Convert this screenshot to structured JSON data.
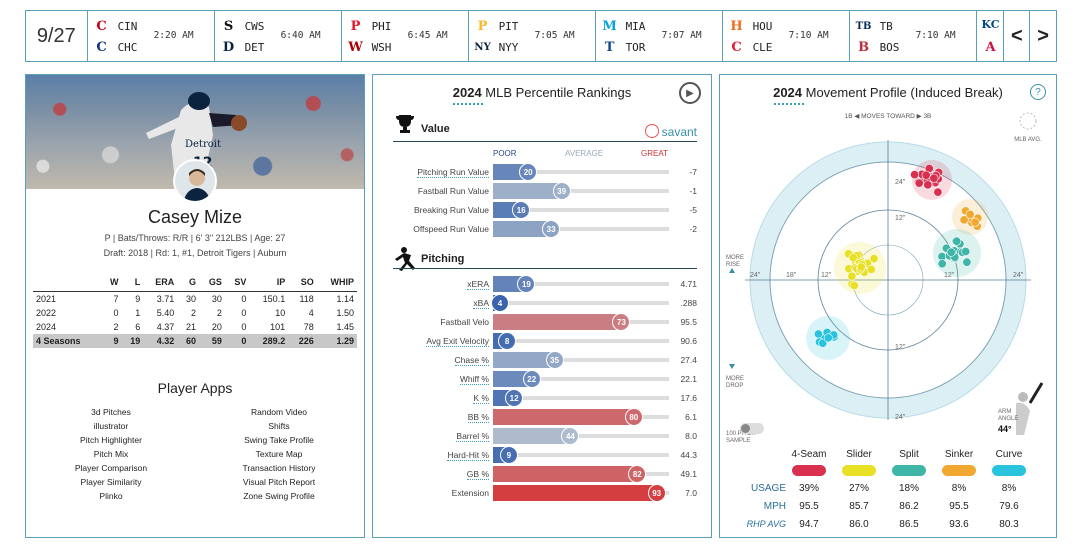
{
  "scoreboard": {
    "date": "9/27",
    "games": [
      {
        "away": "CIN",
        "home": "CHC",
        "time": "2:20 AM",
        "away_logo": "C",
        "home_logo": "C",
        "away_color": "#c6011f",
        "home_color": "#0e3386"
      },
      {
        "away": "CWS",
        "home": "DET",
        "time": "6:40 AM",
        "away_logo": "S",
        "home_logo": "D",
        "away_color": "#111111",
        "home_color": "#0c2340"
      },
      {
        "away": "PHI",
        "home": "WSH",
        "time": "6:45 AM",
        "away_logo": "P",
        "home_logo": "W",
        "away_color": "#e81828",
        "home_color": "#ab0003"
      },
      {
        "away": "PIT",
        "home": "NYY",
        "time": "7:05 AM",
        "away_logo": "P",
        "home_logo": "NY",
        "away_color": "#fdb827",
        "home_color": "#0c2340"
      },
      {
        "away": "MIA",
        "home": "TOR",
        "time": "7:07 AM",
        "away_logo": "M",
        "home_logo": "T",
        "away_color": "#00a3e0",
        "home_color": "#134a8e"
      },
      {
        "away": "HOU",
        "home": "CLE",
        "time": "7:10 AM",
        "away_logo": "H",
        "home_logo": "C",
        "away_color": "#eb6e1f",
        "home_color": "#e31937"
      },
      {
        "away": "TB",
        "home": "BOS",
        "time": "7:10 AM",
        "away_logo": "TB",
        "home_logo": "B",
        "away_color": "#092c5c",
        "home_color": "#bd3039"
      }
    ],
    "partial": {
      "away_logo": "KC",
      "home_logo": "A",
      "away_color": "#004687",
      "home_color": "#ce1141"
    },
    "prev": "<",
    "next": ">"
  },
  "player": {
    "name": "Casey Mize",
    "bio": "P | Bats/Throws: R/R | 6' 3\" 212LBS | Age: 27",
    "draft": "Draft: 2018 | Rd: 1, #1, Detroit Tigers | Auburn",
    "stats": {
      "headers": [
        "",
        "W",
        "L",
        "ERA",
        "G",
        "GS",
        "SV",
        "IP",
        "SO",
        "WHIP"
      ],
      "rows": [
        [
          "2021",
          "7",
          "9",
          "3.71",
          "30",
          "30",
          "0",
          "150.1",
          "118",
          "1.14"
        ],
        [
          "2022",
          "0",
          "1",
          "5.40",
          "2",
          "2",
          "0",
          "10",
          "4",
          "1.50"
        ],
        [
          "2024",
          "2",
          "6",
          "4.37",
          "21",
          "20",
          "0",
          "101",
          "78",
          "1.45"
        ],
        [
          "4 Seasons",
          "9",
          "19",
          "4.32",
          "60",
          "59",
          "0",
          "289.2",
          "226",
          "1.29"
        ]
      ]
    },
    "apps_title": "Player Apps",
    "apps_left": [
      "3d Pitches",
      "illustrator",
      "Pitch Highlighter",
      "Pitch Mix",
      "Player Comparison",
      "Player Similarity",
      "Plinko"
    ],
    "apps_right": [
      "Random Video",
      "Shifts",
      "Swing Take Profile",
      "Texture Map",
      "Transaction History",
      "Visual Pitch Report",
      "Zone Swing Profile"
    ]
  },
  "percentile": {
    "title_year": "2024",
    "title_rest": " MLB Percentile Rankings",
    "savant": "savant",
    "value_head": "Value",
    "pitching_head": "Pitching",
    "scale": {
      "poor": "POOR",
      "average": "AVERAGE",
      "great": "GREAT"
    },
    "value_metrics": [
      {
        "label": "Pitching Run Value",
        "pct": 20,
        "val": "-7",
        "dotted": true
      },
      {
        "label": "Fastball Run Value",
        "pct": 39,
        "val": "-1"
      },
      {
        "label": "Breaking Run Value",
        "pct": 16,
        "val": "-5"
      },
      {
        "label": "Offspeed Run Value",
        "pct": 33,
        "val": "-2"
      }
    ],
    "pitching_metrics": [
      {
        "label": "xERA",
        "pct": 19,
        "val": "4.71",
        "dotted": true
      },
      {
        "label": "xBA",
        "pct": 4,
        "val": ".288",
        "dotted": true
      },
      {
        "label": "Fastball Velo",
        "pct": 73,
        "val": "95.5"
      },
      {
        "label": "Avg Exit Velocity",
        "pct": 8,
        "val": "90.6",
        "dotted": true
      },
      {
        "label": "Chase %",
        "pct": 35,
        "val": "27.4",
        "dotted": true
      },
      {
        "label": "Whiff %",
        "pct": 22,
        "val": "22.1",
        "dotted": true
      },
      {
        "label": "K %",
        "pct": 12,
        "val": "17.6",
        "dotted": true
      },
      {
        "label": "BB %",
        "pct": 80,
        "val": "6.1",
        "dotted": true
      },
      {
        "label": "Barrel %",
        "pct": 44,
        "val": "8.0",
        "dotted": true
      },
      {
        "label": "Hard-Hit %",
        "pct": 9,
        "val": "44.3",
        "dotted": true
      },
      {
        "label": "GB %",
        "pct": 82,
        "val": "49.1",
        "dotted": true
      },
      {
        "label": "Extension",
        "pct": 93,
        "val": "7.0"
      }
    ]
  },
  "movement": {
    "title_year": "2024",
    "title_rest": " Movement Profile (Induced Break)",
    "help": "?",
    "moves_toward": "1B ◀ MOVES TOWARD ▶ 3B",
    "mlb_avg": "MLB AVG.",
    "more_rise": "MORE\nRISE",
    "more_drop": "MORE\nDROP",
    "sample_label": "100 PITCH\nSAMPLE",
    "arm_angle_label": "ARM\nANGLE",
    "arm_angle": "44°",
    "ring_labels": [
      "24\"",
      "12\"",
      "12\"",
      "24\"",
      "24\"",
      "18\"",
      "12\"",
      "12\"",
      "24\""
    ],
    "pitches": [
      {
        "name": "4-Seam",
        "color": "#d9304f",
        "usage": "39%",
        "mph": "95.5",
        "rhp": "94.7"
      },
      {
        "name": "Slider",
        "color": "#e8e025",
        "usage": "27%",
        "mph": "85.7",
        "rhp": "86.0"
      },
      {
        "name": "Split",
        "color": "#3fb5a7",
        "usage": "18%",
        "mph": "86.2",
        "rhp": "86.5"
      },
      {
        "name": "Sinker",
        "color": "#f0a830",
        "usage": "8%",
        "mph": "95.5",
        "rhp": "93.6"
      },
      {
        "name": "Curve",
        "color": "#29c3dd",
        "usage": "8%",
        "mph": "79.6",
        "rhp": "80.3"
      }
    ],
    "row_labels": {
      "usage": "USAGE",
      "mph": "MPH",
      "rhp": "RHP AVG"
    }
  }
}
